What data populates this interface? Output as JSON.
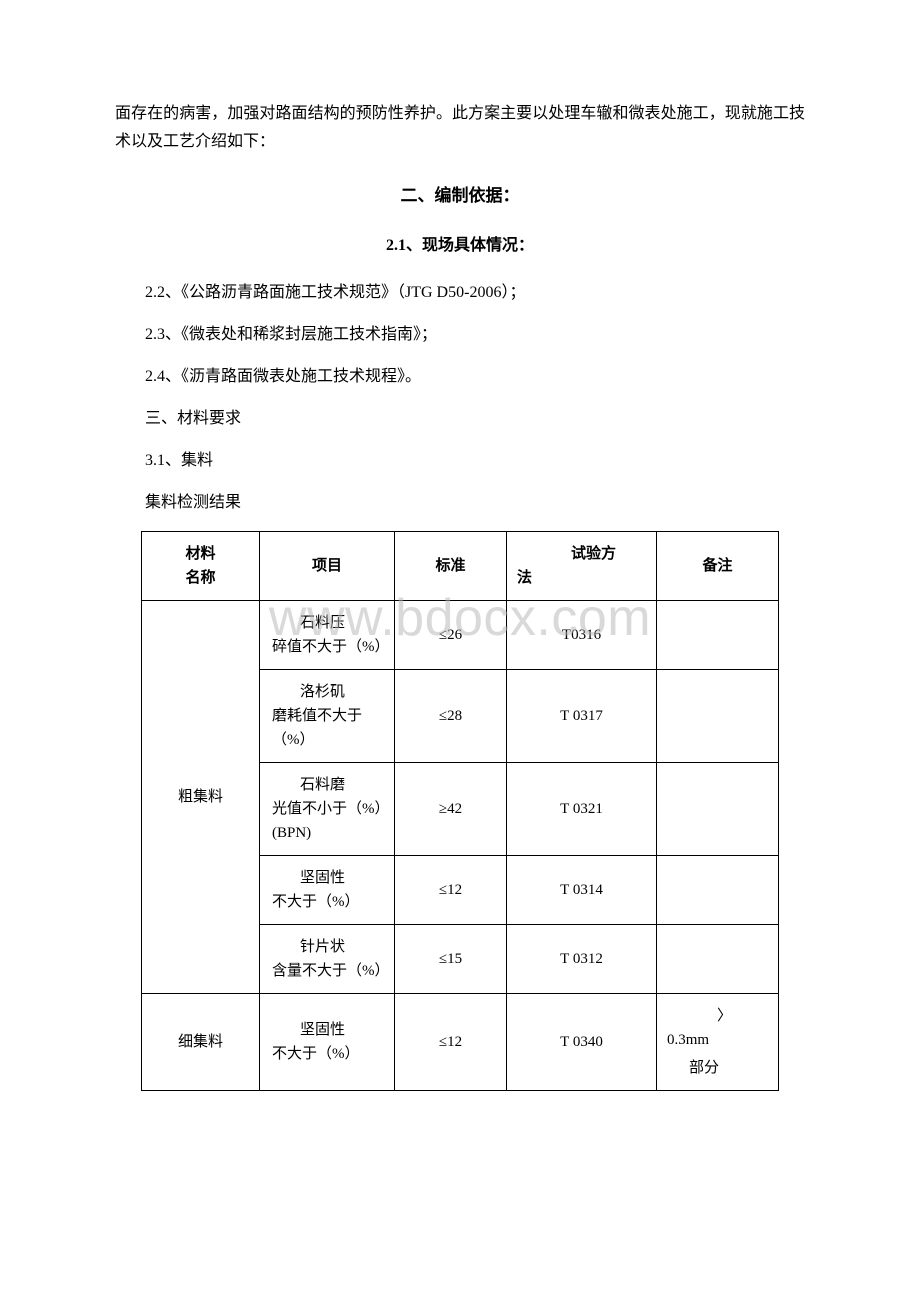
{
  "watermark": "www.bdocx.com",
  "intro": "面存在的病害，加强对路面结构的预防性养护。此方案主要以处理车辙和微表处施工，现就施工技术以及工艺介绍如下：",
  "heading1": "二、编制依据：",
  "heading2": "2.1、现场具体情况：",
  "lines": {
    "l1": "2.2、《公路沥青路面施工技术规范》（JTG D50-2006）；",
    "l2": "2.3、《微表处和稀浆封层施工技术指南》；",
    "l3": "2.4、《沥青路面微表处施工技术规程》。",
    "l4": "三、材料要求",
    "l5": "3.1、集料",
    "l6": "集料检测结果"
  },
  "table": {
    "headers": {
      "material_line1": "材料",
      "material_line2": "名称",
      "item": "项目",
      "standard": "标准",
      "method_line1": "试验方",
      "method_line2": "法",
      "remark": "备注"
    },
    "coarse": {
      "label": "粗集料",
      "rows": [
        {
          "item_first": "石料压",
          "item_rest": "碎值不大于（%）",
          "standard": "≤26",
          "method": "T0316",
          "remark": ""
        },
        {
          "item_first": "洛杉矶",
          "item_rest": "磨耗值不大于（%）",
          "standard": "≤28",
          "method": "T 0317",
          "remark": ""
        },
        {
          "item_first": "石料磨",
          "item_rest": "光值不小于（%）(BPN)",
          "standard": "≥42",
          "method": "T 0321",
          "remark": ""
        },
        {
          "item_first": "坚固性",
          "item_rest": "不大于（%）",
          "standard": "≤12",
          "method": "T 0314",
          "remark": ""
        },
        {
          "item_first": "针片状",
          "item_rest": "含量不大于（%）",
          "standard": "≤15",
          "method": "T 0312",
          "remark": ""
        }
      ]
    },
    "fine": {
      "label": "细集料",
      "rows": [
        {
          "item_first": "坚固性",
          "item_rest": "不大于（%）",
          "standard": "≤12",
          "method": "T 0340",
          "remark_symbol": "〉",
          "remark_mm": "0.3mm",
          "remark_part": "部分"
        }
      ]
    }
  }
}
